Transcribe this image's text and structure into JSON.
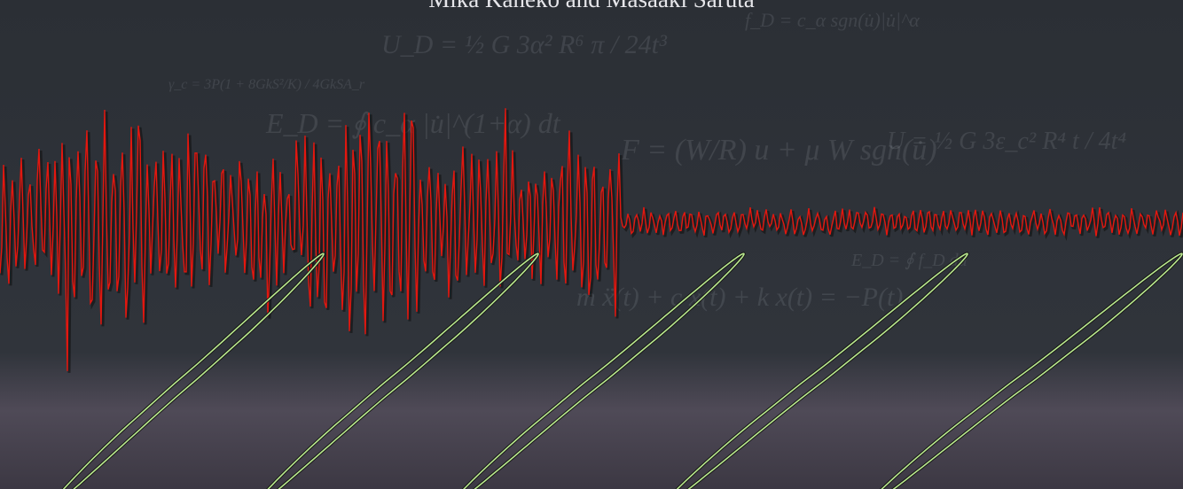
{
  "header": {
    "authors": "Mika Kaneko and Masaaki Saruta"
  },
  "formulas": [
    {
      "text": "m ẍ(t) + c ẋ(t) + k x(t) = −P(t)"
    },
    {
      "text": "F = (W/R) u + μ W sgn(u̇)"
    },
    {
      "text": "E_D = ∮ c_α |u̇|^(1+α) dt"
    },
    {
      "text": "U = ½ G 3ε_c² R⁴ t / 4t⁴"
    },
    {
      "text": "γ_c = 3P(1 + 8GkS²/K) / 4GkSA_r"
    },
    {
      "text": "f_D = c_α sgn(u̇)|u̇|^α"
    },
    {
      "text": "U_D = ½ G 3α² R⁶ π / 24t³"
    },
    {
      "text": "E_D = ∮ f_D du"
    }
  ]
}
